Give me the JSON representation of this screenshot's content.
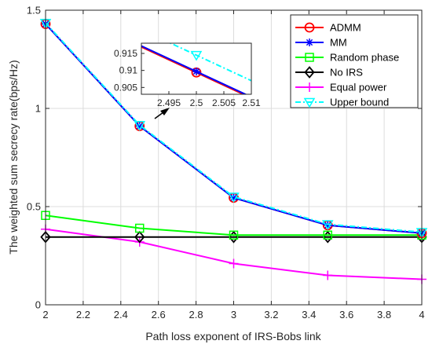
{
  "chart_data": {
    "type": "line",
    "xlabel": "Path loss exponent of IRS-Bobs link",
    "ylabel": "The weighted sum secrecy rate(bps/Hz)",
    "xlim": [
      2,
      4
    ],
    "ylim": [
      0,
      1.5
    ],
    "x_ticks": [
      "2",
      "2.2",
      "2.4",
      "2.6",
      "2.8",
      "3",
      "3.2",
      "3.4",
      "3.6",
      "3.8",
      "4"
    ],
    "y_ticks": [
      "0",
      "0.5",
      "1",
      "1.5"
    ],
    "grid": true,
    "legend_position": "top-right",
    "series": [
      {
        "name": "ADMM",
        "color": "#ff0000",
        "marker": "circle",
        "dash": "solid",
        "x": [
          2,
          2.5,
          3,
          3.5,
          4
        ],
        "values": [
          1.43,
          0.91,
          0.545,
          0.405,
          0.365
        ]
      },
      {
        "name": "MM",
        "color": "#0000ff",
        "marker": "asterisk",
        "dash": "solid",
        "x": [
          2,
          2.5,
          3,
          3.5,
          4
        ],
        "values": [
          1.43,
          0.91,
          0.545,
          0.405,
          0.365
        ]
      },
      {
        "name": "Random phase",
        "color": "#00ff00",
        "marker": "square",
        "dash": "solid",
        "x": [
          2,
          2.5,
          3,
          3.5,
          4
        ],
        "values": [
          0.455,
          0.39,
          0.355,
          0.355,
          0.355
        ]
      },
      {
        "name": "No IRS",
        "color": "#000000",
        "marker": "diamond",
        "dash": "solid",
        "x": [
          2,
          2.5,
          3,
          3.5,
          4
        ],
        "values": [
          0.345,
          0.345,
          0.345,
          0.345,
          0.345
        ]
      },
      {
        "name": "Equal power",
        "color": "#ff00ff",
        "marker": "plus",
        "dash": "solid",
        "x": [
          2,
          2.5,
          3,
          3.5,
          4
        ],
        "values": [
          0.385,
          0.32,
          0.21,
          0.15,
          0.13
        ]
      },
      {
        "name": "Upper bound",
        "color": "#00ffff",
        "marker": "triangle-down",
        "dash": "dashdot",
        "x": [
          2,
          2.5,
          3,
          3.5,
          4
        ],
        "values": [
          1.435,
          0.915,
          0.55,
          0.41,
          0.37
        ]
      }
    ],
    "inset": {
      "xlim": [
        2.49,
        2.51
      ],
      "ylim": [
        0.903,
        0.918
      ],
      "x_ticks": [
        "2.495",
        "2.5",
        "2.505",
        "2.51"
      ],
      "y_ticks": [
        "0.905",
        "0.91",
        "0.915"
      ],
      "series": [
        {
          "name": "ADMM",
          "x": [
            2.49,
            2.5,
            2.51
          ],
          "values": [
            0.9169,
            0.9094,
            0.9019
          ]
        },
        {
          "name": "MM",
          "x": [
            2.49,
            2.5,
            2.51
          ],
          "values": [
            0.9172,
            0.9097,
            0.9022
          ]
        },
        {
          "name": "Upper bound",
          "x": [
            2.49,
            2.5,
            2.51
          ],
          "values": [
            0.922,
            0.9145,
            0.907
          ]
        }
      ]
    }
  }
}
